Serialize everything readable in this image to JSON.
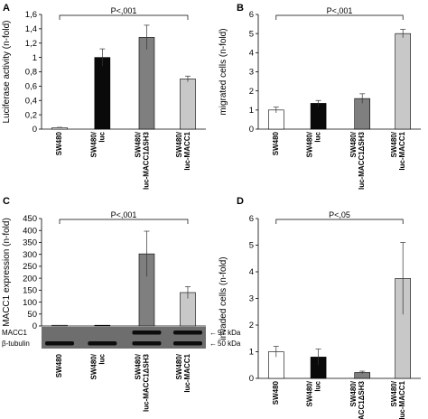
{
  "chart_data": [
    {
      "panel": "A",
      "type": "bar",
      "categories": [
        "SW480",
        "SW480/\nluc",
        "SW480/\nluc-MACC1ΔSH3",
        "SW480/\nluc-MACC1"
      ],
      "values": [
        0.02,
        1.0,
        1.28,
        0.7
      ],
      "errors": [
        0.005,
        0.12,
        0.17,
        0.04
      ],
      "colors": [
        "#ffffff",
        "#0a0a0a",
        "#7f7f7f",
        "#c8c8c8"
      ],
      "ylabel": "Luciferase activity (n-fold)",
      "ylim": [
        0,
        1.6
      ],
      "yticks": [
        0,
        0.2,
        0.4,
        0.6,
        0.8,
        1,
        1.2,
        1.4,
        1.6
      ],
      "yticklabels": [
        "0",
        "0,2",
        "0,4",
        "0,6",
        "0,8",
        "1",
        "1,2",
        "1,4",
        "1,6"
      ],
      "significance": {
        "text": "P<,001",
        "from": 0,
        "to": 3
      }
    },
    {
      "panel": "B",
      "type": "bar",
      "categories": [
        "SW480",
        "SW480/\nluc",
        "SW480/\nluc-MACC1ΔSH3",
        "SW480/\nluc-MACC1"
      ],
      "values": [
        1.0,
        1.35,
        1.6,
        5.0
      ],
      "errors": [
        0.15,
        0.15,
        0.25,
        0.22
      ],
      "colors": [
        "#ffffff",
        "#0a0a0a",
        "#7f7f7f",
        "#c8c8c8"
      ],
      "ylabel": "migrated cells (n-fold)",
      "ylim": [
        0,
        6
      ],
      "yticks": [
        0,
        1,
        2,
        3,
        4,
        5,
        6
      ],
      "yticklabels": [
        "0",
        "1",
        "2",
        "3",
        "4",
        "5",
        "6"
      ],
      "significance": {
        "text": "P<,001",
        "from": 0,
        "to": 3
      }
    },
    {
      "panel": "C",
      "type": "bar",
      "categories": [
        "SW480",
        "SW480/\nluc",
        "SW480/\nluc-MACC1ΔSH3",
        "SW480/\nluc-MACC1"
      ],
      "values": [
        1,
        1,
        302,
        140
      ],
      "errors": [
        0,
        0,
        95,
        25
      ],
      "colors": [
        "#ffffff",
        "#0a0a0a",
        "#7f7f7f",
        "#c8c8c8"
      ],
      "ylabel": "MACC1 expression (n-fold)",
      "ylim": [
        0,
        450
      ],
      "yticks": [
        0,
        50,
        100,
        150,
        200,
        250,
        300,
        350,
        400,
        450
      ],
      "yticklabels": [
        "0",
        "50",
        "100",
        "150",
        "200",
        "250",
        "300",
        "350",
        "400",
        "450"
      ],
      "significance": {
        "text": "P<,001",
        "from": 0,
        "to": 3
      },
      "blot": {
        "rows": [
          {
            "label": "MACC1",
            "marker": "97 kDa",
            "bands": [
              false,
              false,
              true,
              true
            ]
          },
          {
            "label": "β-tubulin",
            "marker": "50 kDa",
            "bands": [
              true,
              true,
              true,
              true
            ]
          }
        ]
      }
    },
    {
      "panel": "D",
      "type": "bar",
      "categories": [
        "SW480",
        "SW480/\nluc",
        "SW480/\nluc-MACC1ΔSH3",
        "SW480/\nluc-MACC1"
      ],
      "values": [
        1.0,
        0.8,
        0.22,
        3.75
      ],
      "errors": [
        0.2,
        0.3,
        0.05,
        1.35
      ],
      "colors": [
        "#ffffff",
        "#0a0a0a",
        "#7f7f7f",
        "#c8c8c8"
      ],
      "ylabel": "invaded cells (n-fold)",
      "ylim": [
        0,
        6
      ],
      "yticks": [
        0,
        1,
        2,
        3,
        4,
        5,
        6
      ],
      "yticklabels": [
        "0",
        "1",
        "2",
        "3",
        "4",
        "5",
        "6"
      ],
      "significance": {
        "text": "P<,05",
        "from": 0,
        "to": 3
      }
    }
  ]
}
